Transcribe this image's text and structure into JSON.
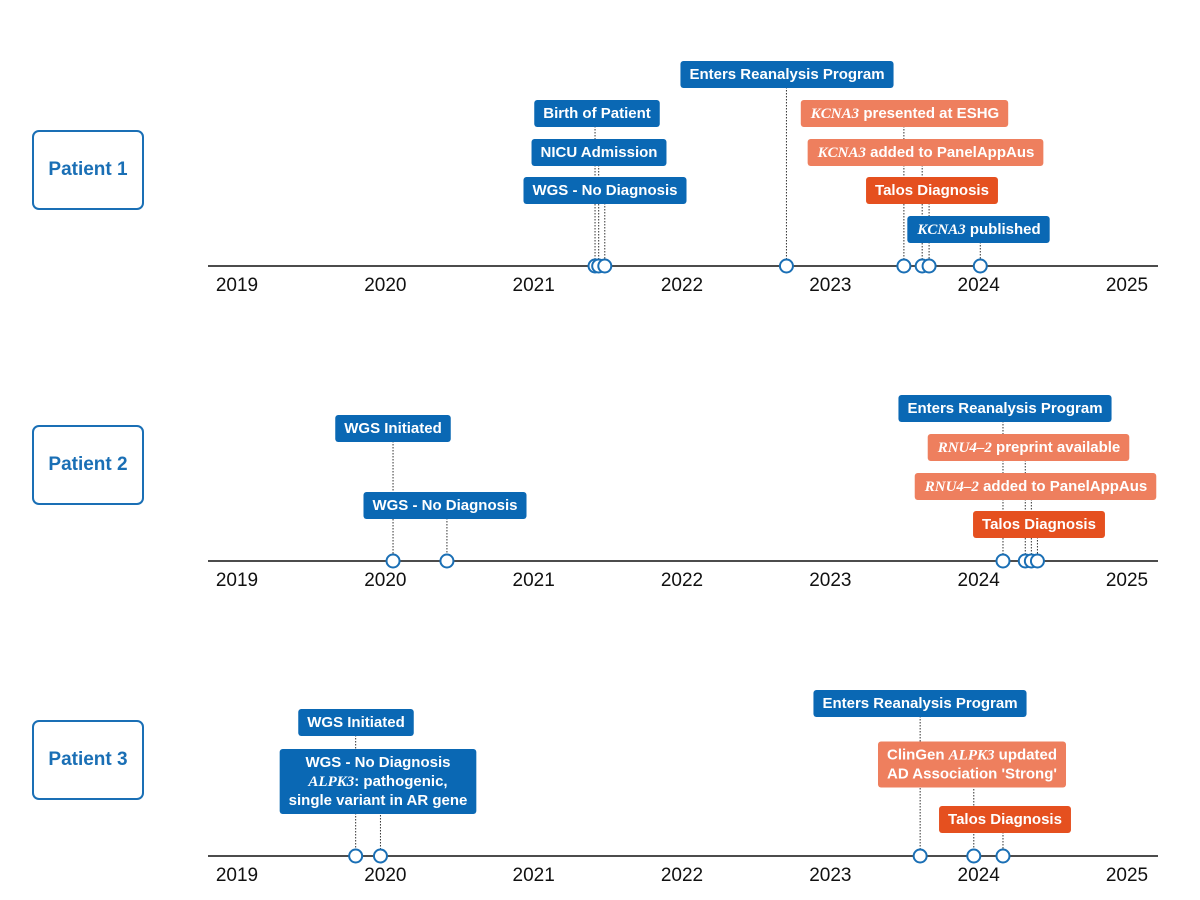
{
  "colors": {
    "blue": "#0a68b4",
    "salmon": "#ee7f5e",
    "orange": "#e5501f",
    "patient_border": "#1a6fb5",
    "axis": "#111111"
  },
  "axis": {
    "type": "date-timeline",
    "xlim": [
      "2019",
      "2025"
    ],
    "ticks": [
      "2019",
      "2020",
      "2021",
      "2022",
      "2023",
      "2024",
      "2025"
    ]
  },
  "chart_data": [
    {
      "type": "timeline",
      "patient": "Patient 1",
      "events": [
        {
          "date": "2021-06-01",
          "parts": [
            {
              "t": "Birth of Patient"
            }
          ],
          "color": "blue"
        },
        {
          "date": "2021-06-10",
          "parts": [
            {
              "t": "NICU Admission"
            }
          ],
          "color": "blue"
        },
        {
          "date": "2021-06-25",
          "parts": [
            {
              "t": "WGS - No Diagnosis"
            }
          ],
          "color": "blue"
        },
        {
          "date": "2022-09-15",
          "parts": [
            {
              "t": "Enters Reanalysis Program"
            }
          ],
          "color": "blue"
        },
        {
          "date": "2023-07-01",
          "parts": [
            {
              "t": "KCNA3",
              "i": true
            },
            {
              "t": " presented at ESHG"
            }
          ],
          "color": "salmon"
        },
        {
          "date": "2023-08-15",
          "parts": [
            {
              "t": "KCNA3",
              "i": true
            },
            {
              "t": " added to PanelAppAus"
            }
          ],
          "color": "salmon"
        },
        {
          "date": "2023-09-01",
          "parts": [
            {
              "t": "Talos Diagnosis"
            }
          ],
          "color": "orange"
        },
        {
          "date": "2024-01-05",
          "parts": [
            {
              "t": "KCNA3",
              "i": true
            },
            {
              "t": " published"
            }
          ],
          "color": "blue"
        }
      ]
    },
    {
      "type": "timeline",
      "patient": "Patient 2",
      "events": [
        {
          "date": "2020-01-20",
          "parts": [
            {
              "t": "WGS Initiated"
            }
          ],
          "color": "blue"
        },
        {
          "date": "2020-06-01",
          "parts": [
            {
              "t": "WGS - No Diagnosis"
            }
          ],
          "color": "blue"
        },
        {
          "date": "2024-03-01",
          "parts": [
            {
              "t": "Enters Reanalysis Program"
            }
          ],
          "color": "blue"
        },
        {
          "date": "2024-04-25",
          "parts": [
            {
              "t": "RNU4–2",
              "i": true
            },
            {
              "t": " preprint available"
            }
          ],
          "color": "salmon"
        },
        {
          "date": "2024-05-10",
          "parts": [
            {
              "t": "RNU4–2",
              "i": true
            },
            {
              "t": " added to PanelAppAus"
            }
          ],
          "color": "salmon"
        },
        {
          "date": "2024-05-25",
          "parts": [
            {
              "t": "Talos Diagnosis"
            }
          ],
          "color": "orange"
        }
      ]
    },
    {
      "type": "timeline",
      "patient": "Patient 3",
      "events": [
        {
          "date": "2019-10-20",
          "parts": [
            {
              "t": "WGS Initiated"
            }
          ],
          "color": "blue"
        },
        {
          "date": "2019-12-20",
          "lines": [
            [
              {
                "t": "WGS - No Diagnosis"
              }
            ],
            [
              {
                "t": "ALPK3",
                "i": true
              },
              {
                "t": ": pathogenic,"
              }
            ],
            [
              {
                "t": "single variant in AR gene"
              }
            ]
          ],
          "color": "blue"
        },
        {
          "date": "2023-08-10",
          "parts": [
            {
              "t": "Enters Reanalysis Program"
            }
          ],
          "color": "blue"
        },
        {
          "date": "2023-12-20",
          "lines": [
            [
              {
                "t": "ClinGen "
              },
              {
                "t": "ALPK3",
                "i": true
              },
              {
                "t": " updated"
              }
            ],
            [
              {
                "t": "AD Association 'Strong'"
              }
            ]
          ],
          "color": "salmon"
        },
        {
          "date": "2024-03-01",
          "parts": [
            {
              "t": "Talos Diagnosis"
            }
          ],
          "color": "orange"
        }
      ]
    }
  ]
}
